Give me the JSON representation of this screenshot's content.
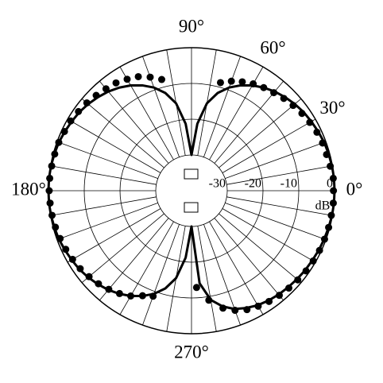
{
  "chart_data": {
    "type": "polar",
    "rlim": [
      -40,
      0
    ],
    "rticks": [
      -30,
      -20,
      -10,
      0
    ],
    "r_label": "dB",
    "thetaticks": [
      {
        "value": 0,
        "label": "0°"
      },
      {
        "value": 30,
        "label": "30°"
      },
      {
        "value": 60,
        "label": "60°"
      },
      {
        "value": 90,
        "label": "90°"
      },
      {
        "value": 180,
        "label": "180°"
      },
      {
        "value": 270,
        "label": "270°"
      }
    ],
    "thetagrid": [
      0,
      10,
      20,
      30,
      40,
      50,
      60,
      70,
      80,
      90,
      100,
      110,
      120,
      130,
      140,
      150,
      160,
      170,
      180,
      190,
      200,
      210,
      220,
      230,
      240,
      250,
      260,
      270,
      280,
      290,
      300,
      310,
      320,
      330,
      340,
      350
    ],
    "series": [
      {
        "mode": "line",
        "color": "#000000",
        "theta": [
          0,
          5,
          10,
          15,
          20,
          25,
          30,
          35,
          40,
          45,
          50,
          55,
          60,
          65,
          70,
          75,
          80,
          85,
          90,
          95,
          100,
          105,
          110,
          115,
          120,
          125,
          130,
          135,
          140,
          145,
          150,
          155,
          160,
          165,
          170,
          175,
          180,
          185,
          190,
          195,
          200,
          205,
          210,
          215,
          220,
          225,
          230,
          235,
          240,
          245,
          250,
          255,
          260,
          265,
          270,
          275,
          280,
          285,
          290,
          295,
          300,
          305,
          310,
          315,
          320,
          325,
          330,
          335,
          340,
          345,
          350,
          355,
          360
        ],
        "values": [
          0,
          0,
          -0.1,
          -0.3,
          -0.5,
          -0.9,
          -1.3,
          -1.7,
          -2.3,
          -3,
          -3.8,
          -4.8,
          -6,
          -7.5,
          -9.3,
          -11.7,
          -15.2,
          -21.2,
          -30,
          -21.2,
          -15.2,
          -11.7,
          -9.3,
          -7.5,
          -6,
          -4.8,
          -3.8,
          -3,
          -2.3,
          -1.7,
          -1.3,
          -0.9,
          -0.5,
          -0.3,
          -0.1,
          0,
          0,
          0,
          -0.1,
          -0.3,
          -0.5,
          -0.9,
          -1.3,
          -1.7,
          -2.3,
          -3,
          -3.8,
          -4.8,
          -6,
          -7.5,
          -9.3,
          -11.7,
          -15.2,
          -21.2,
          -30,
          -14,
          -9,
          -6.5,
          -4.8,
          -3.8,
          -3,
          -2.5,
          -2.1,
          -1.8,
          -1.5,
          -1.2,
          -1,
          -0.7,
          -0.5,
          -0.3,
          -0.1,
          0,
          0
        ]
      },
      {
        "mode": "markers",
        "color": "#000000",
        "theta": [
          0,
          5,
          10,
          15,
          20,
          25,
          30,
          35,
          40,
          45,
          50,
          55,
          60,
          65,
          70,
          75,
          105,
          110,
          115,
          120,
          125,
          130,
          135,
          140,
          145,
          150,
          155,
          160,
          165,
          170,
          175,
          180,
          185,
          190,
          195,
          200,
          205,
          210,
          215,
          220,
          225,
          230,
          235,
          240,
          245,
          250,
          273,
          279,
          285,
          290,
          295,
          300,
          305,
          310,
          315,
          320,
          325,
          330,
          335,
          340,
          345,
          350,
          355
        ],
        "values": [
          -0.3,
          -0.2,
          -0.6,
          -0.9,
          -1,
          -1.3,
          -1.8,
          -2.3,
          -2.9,
          -3.5,
          -4.2,
          -4.8,
          -5.5,
          -6.4,
          -7.4,
          -8.7,
          -7.8,
          -6.2,
          -4.8,
          -4,
          -3.2,
          -2.8,
          -2.3,
          -1.8,
          -1.4,
          -1,
          -0.8,
          -0.5,
          -0.4,
          -0.3,
          -0.2,
          -0.2,
          -0.3,
          -0.4,
          -0.6,
          -0.9,
          -1.2,
          -1.6,
          -2,
          -2.6,
          -3.2,
          -4,
          -4.9,
          -6,
          -7.6,
          -8.6,
          -12.9,
          -9,
          -6,
          -4.4,
          -3.3,
          -2.7,
          -2.2,
          -1.8,
          -1.5,
          -1.2,
          -0.9,
          -0.7,
          -0.5,
          -0.4,
          -0.3,
          -0.3,
          -0.2
        ]
      }
    ]
  }
}
